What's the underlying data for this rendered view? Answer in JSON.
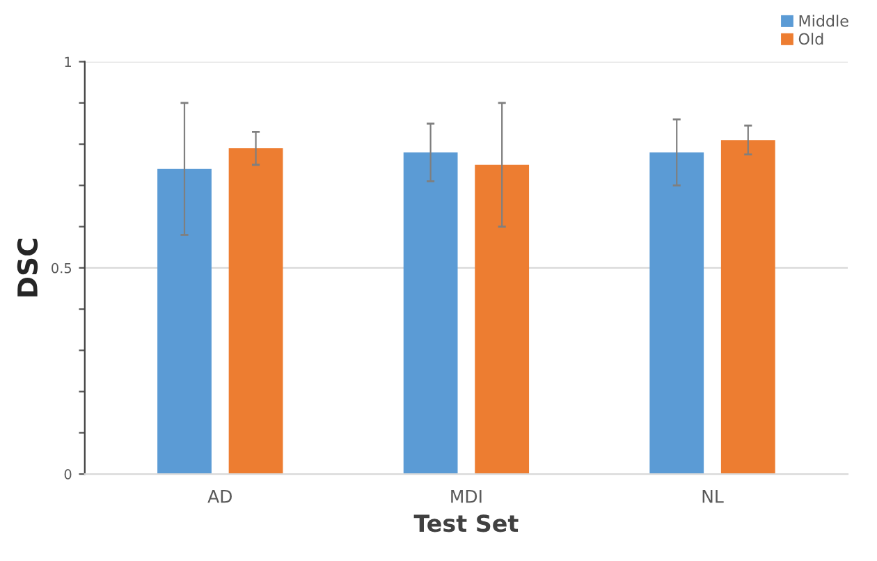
{
  "chart_data": {
    "type": "bar",
    "xlabel": "Test Set",
    "ylabel": "DSC",
    "categories": [
      "AD",
      "MDI",
      "NL"
    ],
    "series": [
      {
        "name": "Middle",
        "color": "#5b9bd5",
        "values": [
          0.74,
          0.78,
          0.78
        ],
        "errors": [
          0.16,
          0.07,
          0.08
        ]
      },
      {
        "name": "Old",
        "color": "#ed7d31",
        "values": [
          0.79,
          0.75,
          0.81
        ],
        "errors": [
          0.04,
          0.15,
          0.035
        ]
      }
    ],
    "ylim": [
      0,
      1
    ],
    "yticks": [
      0,
      {
        "value": 0.1,
        "label": null
      },
      {
        "value": 0.2,
        "label": null
      },
      {
        "value": 0.3,
        "label": null
      },
      {
        "value": 0.4,
        "label": null
      },
      0.5,
      {
        "value": 0.6,
        "label": null
      },
      {
        "value": 0.7,
        "label": null
      },
      {
        "value": 0.8,
        "label": null
      },
      {
        "value": 0.9,
        "label": null
      },
      1
    ],
    "grid": "y",
    "legend": "top right"
  }
}
